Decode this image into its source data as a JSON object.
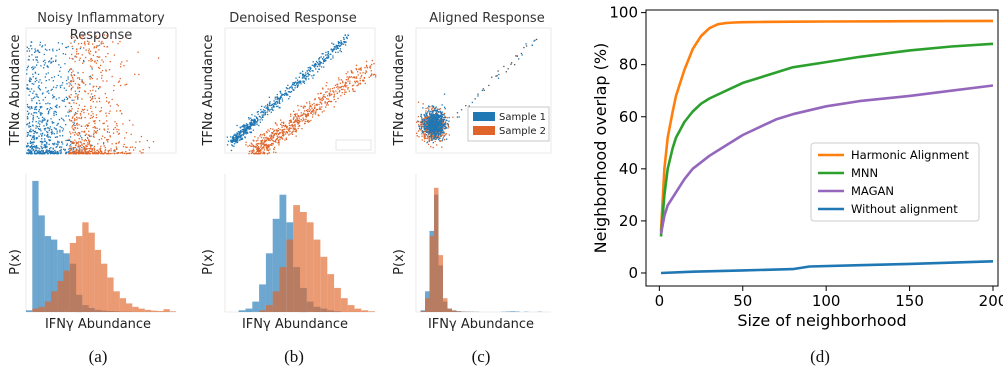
{
  "colors": {
    "sample1": "#1f77b4",
    "sample2": "#e0652a",
    "harmonic": "#ff7f0e",
    "mnn": "#2ca02c",
    "magan": "#9467bd",
    "without": "#1f77b4"
  },
  "captions": [
    "(a)",
    "(b)",
    "(c)",
    "(d)"
  ],
  "chart_data": [
    {
      "type": "scatter",
      "panel": "a",
      "title": "Noisy Inflammatory Response",
      "title_lines": [
        "Noisy Inflammatory",
        "Response"
      ],
      "ylabel": "TFNα Abundance",
      "pattern": "noisy",
      "series": [
        {
          "name": "Sample 1",
          "color_key": "sample1"
        },
        {
          "name": "Sample 2",
          "color_key": "sample2"
        }
      ]
    },
    {
      "type": "scatter",
      "panel": "b",
      "title": "Denoised Response",
      "title_lines": [
        "Denoised Response"
      ],
      "ylabel": "TFNα Abundance",
      "pattern": "denoised",
      "series": [
        {
          "name": "Sample 1",
          "color_key": "sample1"
        },
        {
          "name": "Sample 2",
          "color_key": "sample2"
        }
      ]
    },
    {
      "type": "scatter",
      "panel": "c",
      "title": "Aligned Response",
      "title_lines": [
        "Aligned Response"
      ],
      "ylabel": "TFNα Abundance",
      "pattern": "aligned",
      "legend": [
        "Sample 1",
        "Sample 2"
      ],
      "legend_position": "lower-right",
      "series": [
        {
          "name": "Sample 1",
          "color_key": "sample1"
        },
        {
          "name": "Sample 2",
          "color_key": "sample2"
        }
      ]
    },
    {
      "type": "bar",
      "panel": "a",
      "xlabel": "IFNγ Abundance",
      "ylabel": "P(x)",
      "ylim": [
        0,
        0.4
      ],
      "bins": 24,
      "series": [
        {
          "name": "Sample 1",
          "color_key": "sample1",
          "values": [
            0.005,
            0.38,
            0.28,
            0.22,
            0.21,
            0.18,
            0.17,
            0.14,
            0.05,
            0.02,
            0.012,
            0.006,
            0.004,
            0.003,
            0.002,
            0.001,
            0.001,
            0,
            0,
            0,
            0,
            0,
            0,
            0
          ]
        },
        {
          "name": "Sample 2",
          "color_key": "sample2",
          "values": [
            0,
            0.01,
            0.015,
            0.03,
            0.06,
            0.09,
            0.12,
            0.2,
            0.22,
            0.26,
            0.23,
            0.18,
            0.14,
            0.1,
            0.06,
            0.04,
            0.025,
            0.015,
            0.01,
            0.006,
            0.004,
            0.003,
            0.008,
            0.002
          ]
        }
      ]
    },
    {
      "type": "bar",
      "panel": "b",
      "xlabel": "IFNγ Abundance",
      "ylabel": "P(x)",
      "ylim": [
        0,
        0.4
      ],
      "bins": 22,
      "series": [
        {
          "name": "Sample 1",
          "color_key": "sample1",
          "values": [
            0,
            0,
            0.005,
            0.01,
            0.03,
            0.08,
            0.17,
            0.27,
            0.34,
            0.26,
            0.13,
            0.07,
            0.03,
            0.015,
            0.01,
            0.005,
            0.002,
            0,
            0,
            0,
            0,
            0
          ]
        },
        {
          "name": "Sample 2",
          "color_key": "sample2",
          "values": [
            0,
            0,
            0,
            0,
            0,
            0.005,
            0.02,
            0.06,
            0.13,
            0.21,
            0.31,
            0.29,
            0.26,
            0.21,
            0.16,
            0.11,
            0.07,
            0.04,
            0.02,
            0.01,
            0.005,
            0.002
          ]
        }
      ]
    },
    {
      "type": "bar",
      "panel": "c",
      "xlabel": "IFNγ Abundance",
      "ylabel": "P(x)",
      "ylim": [
        0,
        0.8
      ],
      "bins": 30,
      "series": [
        {
          "name": "Sample 1",
          "color_key": "sample1",
          "values": [
            0,
            0.01,
            0.12,
            0.47,
            0.68,
            0.27,
            0.06,
            0.02,
            0.01,
            0.005,
            0.003,
            0.002,
            0.001,
            0.001,
            0,
            0,
            0,
            0,
            0,
            0.002,
            0.003,
            0.004,
            0.003,
            0,
            0.002,
            0,
            0,
            0.002,
            0,
            0
          ]
        },
        {
          "name": "Sample 2",
          "color_key": "sample2",
          "values": [
            0,
            0.005,
            0.08,
            0.44,
            0.72,
            0.33,
            0.08,
            0.02,
            0.008,
            0.004,
            0.002,
            0.001,
            0.001,
            0,
            0,
            0,
            0,
            0,
            0,
            0,
            0,
            0,
            0,
            0,
            0,
            0,
            0,
            0,
            0,
            0
          ]
        }
      ]
    },
    {
      "type": "line",
      "panel": "d",
      "xlabel": "Size of neighborhood",
      "ylabel": "Neighborhood overlap (%)",
      "xlim": [
        -8,
        203
      ],
      "ylim": [
        -5,
        101
      ],
      "xticks": [
        0,
        50,
        100,
        150,
        200
      ],
      "yticks": [
        0,
        20,
        40,
        60,
        80,
        100
      ],
      "legend_position": "center-right",
      "series": [
        {
          "name": "Harmonic Alignment",
          "color_key": "harmonic",
          "x": [
            1,
            3,
            5,
            8,
            10,
            15,
            20,
            25,
            30,
            35,
            40,
            45,
            50,
            60,
            80,
            100,
            150,
            200
          ],
          "y": [
            16,
            40,
            52,
            62,
            68,
            78,
            86,
            91,
            94,
            95.5,
            96,
            96.2,
            96.3,
            96.4,
            96.5,
            96.6,
            96.7,
            96.8
          ]
        },
        {
          "name": "MNN",
          "color_key": "mnn",
          "x": [
            1,
            3,
            5,
            8,
            10,
            15,
            20,
            25,
            30,
            40,
            50,
            60,
            70,
            80,
            100,
            120,
            150,
            175,
            200
          ],
          "y": [
            14,
            30,
            40,
            48,
            52,
            58,
            62,
            65,
            67,
            70,
            73,
            75,
            77,
            79,
            81,
            83,
            85.5,
            87,
            88
          ]
        },
        {
          "name": "MAGAN",
          "color_key": "magan",
          "x": [
            1,
            3,
            5,
            8,
            10,
            15,
            20,
            30,
            40,
            50,
            60,
            70,
            80,
            100,
            120,
            150,
            175,
            200
          ],
          "y": [
            15,
            22,
            26,
            29,
            31,
            36,
            40,
            45,
            49,
            53,
            56,
            59,
            61,
            64,
            66,
            68,
            70,
            72
          ]
        },
        {
          "name": "Without alignment",
          "color_key": "without",
          "x": [
            1,
            20,
            50,
            80,
            90,
            120,
            150,
            200
          ],
          "y": [
            0,
            0.5,
            1,
            1.5,
            2.5,
            3,
            3.5,
            4.5
          ]
        }
      ]
    }
  ]
}
